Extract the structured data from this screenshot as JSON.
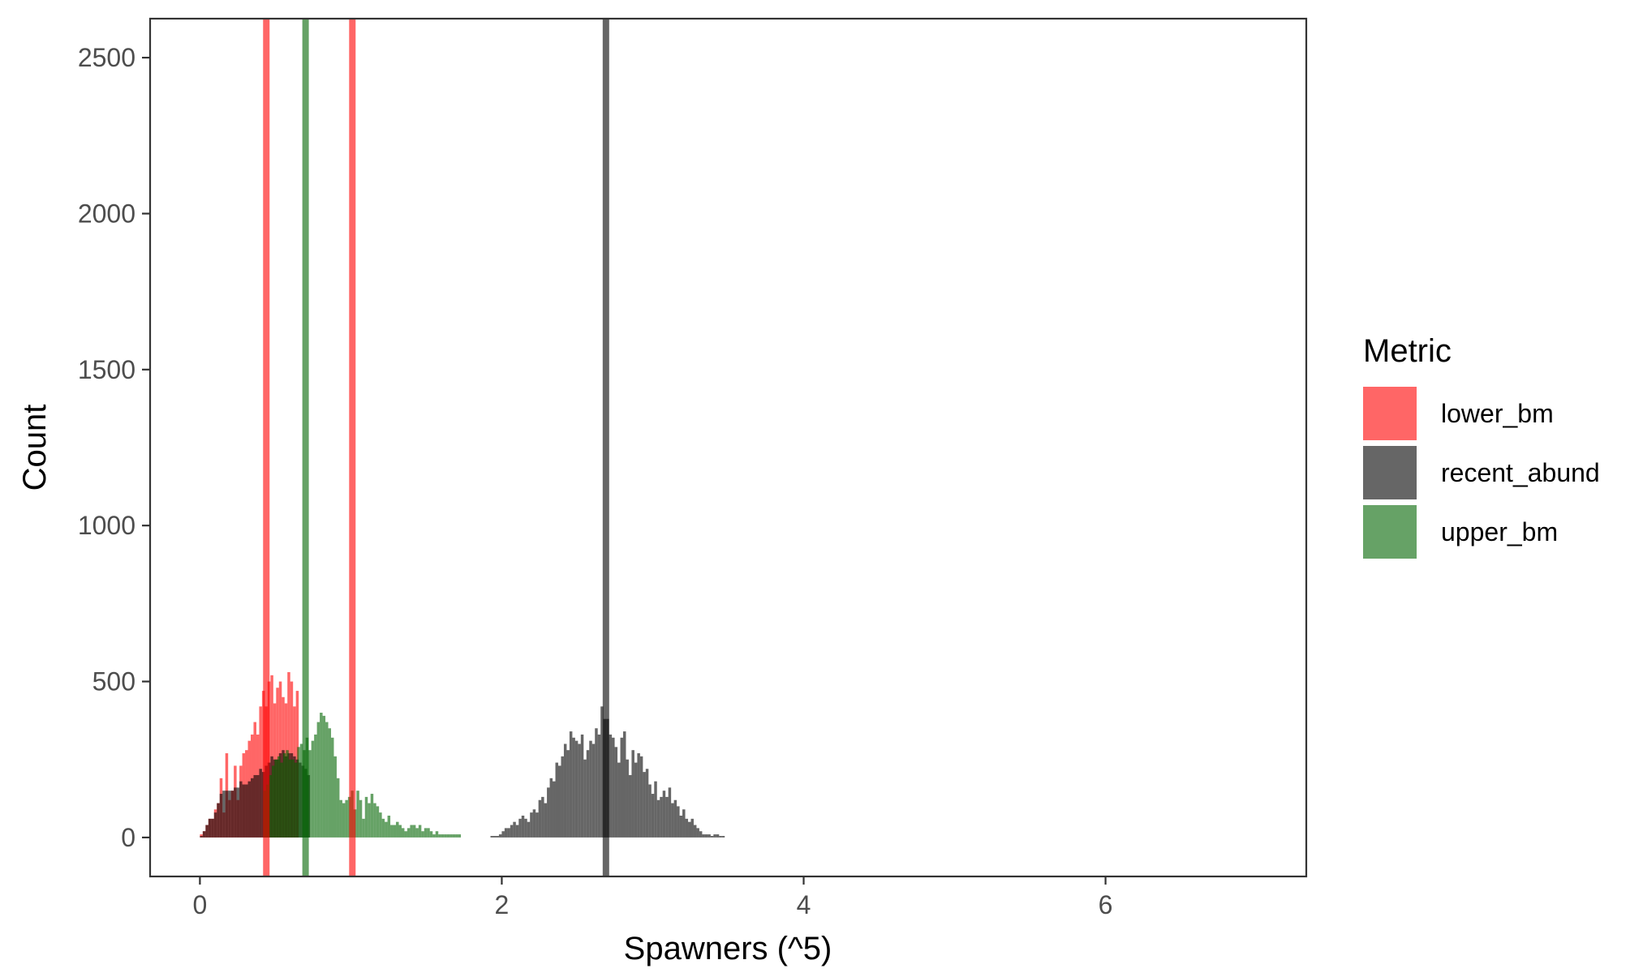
{
  "chart_data": {
    "type": "histogram",
    "xlabel": "Spawners (^5)",
    "ylabel": "Count",
    "xlim": [
      -0.33,
      7.33
    ],
    "ylim": [
      -125,
      2625
    ],
    "x_ticks": [
      0,
      2,
      4,
      6
    ],
    "y_ticks": [
      0,
      500,
      1000,
      1500,
      2000,
      2500
    ],
    "grid": false,
    "legend": {
      "title": "Metric",
      "position": "right",
      "entries": [
        {
          "label": "lower_bm",
          "color": "#FF0000"
        },
        {
          "label": "recent_abund",
          "color": "#000000"
        },
        {
          "label": "upper_bm",
          "color": "#006400"
        }
      ]
    },
    "fill_alpha": 0.6,
    "bin_width": 0.0187,
    "series": [
      {
        "name": "lower_bm",
        "color": "#FF0000",
        "bin_start": 0.0,
        "counts": [
          10,
          20,
          40,
          60,
          60,
          90,
          110,
          190,
          80,
          270,
          120,
          150,
          230,
          120,
          230,
          270,
          280,
          310,
          330,
          370,
          330,
          420,
          470,
          420,
          500,
          520,
          430,
          480,
          500,
          450,
          430,
          530,
          500,
          420,
          470
        ]
      },
      {
        "name": "recent_abund",
        "color": "#000000",
        "bin_start": 0.0,
        "counts": [
          5,
          20,
          40,
          60,
          60,
          80,
          110,
          140,
          150,
          150,
          150,
          150,
          160,
          160,
          180,
          170,
          170,
          180,
          190,
          200,
          200,
          220,
          210,
          230,
          240,
          260,
          250,
          250,
          270,
          280,
          260,
          270,
          270,
          260,
          250,
          240,
          230,
          220,
          200
        ]
      },
      {
        "name": "recent_abund",
        "color": "#000000",
        "bin_start": 1.925,
        "counts": [
          5,
          5,
          5,
          10,
          20,
          30,
          30,
          40,
          50,
          40,
          60,
          70,
          60,
          50,
          80,
          90,
          80,
          120,
          130,
          110,
          160,
          190,
          180,
          240,
          230,
          260,
          300,
          280,
          340,
          320,
          310,
          300,
          330,
          250,
          280,
          310,
          300,
          350,
          330,
          420,
          380,
          380,
          330,
          320,
          290,
          240,
          320,
          340,
          250,
          200,
          280,
          240,
          270,
          260,
          210,
          220,
          170,
          140,
          180,
          120,
          130,
          150,
          130,
          160,
          110,
          120,
          100,
          70,
          90,
          60,
          50,
          60,
          40,
          30,
          20,
          10,
          10,
          10,
          5,
          10,
          10,
          5,
          5
        ]
      },
      {
        "name": "upper_bm",
        "color": "#006400",
        "bin_start": 0.42,
        "counts": [
          150,
          170,
          200,
          230,
          250,
          260,
          240,
          270,
          280,
          250,
          250,
          240,
          290,
          300,
          280,
          320,
          280,
          310,
          330,
          370,
          400,
          390,
          370,
          350,
          320,
          260,
          190,
          120,
          110,
          120,
          130,
          150,
          90,
          150,
          120,
          60,
          130,
          110,
          140,
          110,
          100,
          80,
          60,
          50,
          70,
          40,
          40,
          50,
          40,
          30,
          20,
          30,
          40,
          40,
          30,
          40,
          20,
          30,
          30,
          20,
          10,
          20,
          10,
          10,
          10,
          10,
          10,
          10,
          10,
          10
        ]
      }
    ],
    "reference_lines": [
      {
        "name": "lower_bm",
        "x": 0.44,
        "color": "#FF0000"
      },
      {
        "name": "lower_bm",
        "x": 1.01,
        "color": "#FF0000"
      },
      {
        "name": "upper_bm",
        "x": 0.7,
        "color": "#006400"
      },
      {
        "name": "recent_abund",
        "x": 2.69,
        "color": "#000000"
      }
    ]
  }
}
